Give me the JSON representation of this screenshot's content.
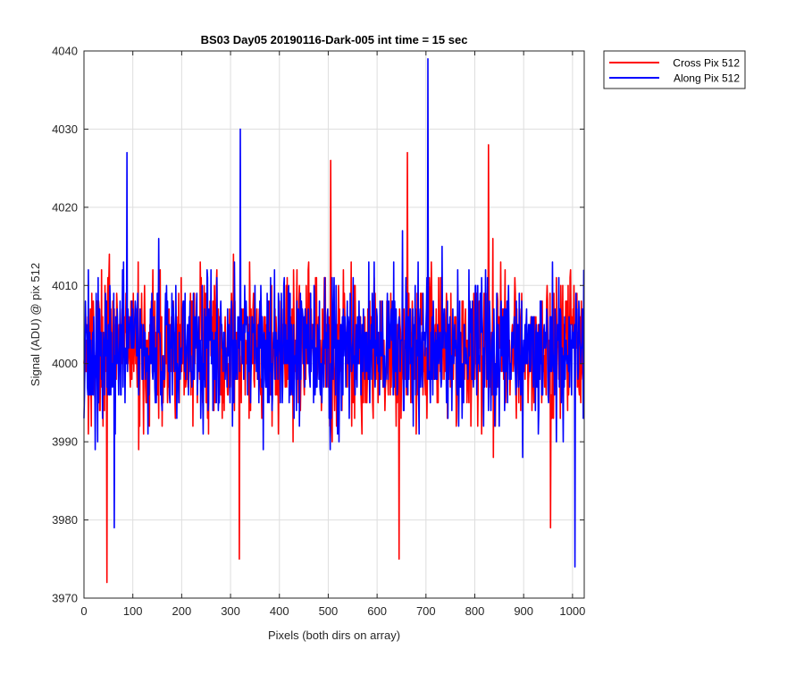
{
  "chart_data": {
    "type": "line",
    "title": "BS03 Day05 20190116-Dark-005 int time = 15 sec",
    "xlabel": "Pixels (both dirs on array)",
    "ylabel": "Signal (ADU) @ pix 512",
    "xlim": [
      0,
      1024
    ],
    "ylim": [
      3970,
      4040
    ],
    "xticks": [
      0,
      100,
      200,
      300,
      400,
      500,
      600,
      700,
      800,
      900,
      1000
    ],
    "yticks": [
      3970,
      3980,
      3990,
      4000,
      4010,
      4020,
      4030,
      4040
    ],
    "grid": true,
    "legend_position": "top-right-outside",
    "series": [
      {
        "name": "Cross Pix 512",
        "color": "#ff0000",
        "baseline": 4002,
        "amplitude": 7,
        "seed": 17,
        "n_points": 1024,
        "extremes": [
          {
            "x": 47,
            "y": 3972
          },
          {
            "x": 318,
            "y": 3975
          },
          {
            "x": 505,
            "y": 4026
          },
          {
            "x": 645,
            "y": 3975
          },
          {
            "x": 662,
            "y": 4027
          },
          {
            "x": 828,
            "y": 4028
          },
          {
            "x": 955,
            "y": 3979
          }
        ]
      },
      {
        "name": "Along Pix 512",
        "color": "#0000ff",
        "baseline": 4002,
        "amplitude": 7,
        "seed": 91,
        "n_points": 1024,
        "extremes": [
          {
            "x": 88,
            "y": 4027
          },
          {
            "x": 320,
            "y": 4030
          },
          {
            "x": 704,
            "y": 4039
          },
          {
            "x": 1005,
            "y": 3974
          },
          {
            "x": 62,
            "y": 3979
          }
        ]
      }
    ]
  }
}
